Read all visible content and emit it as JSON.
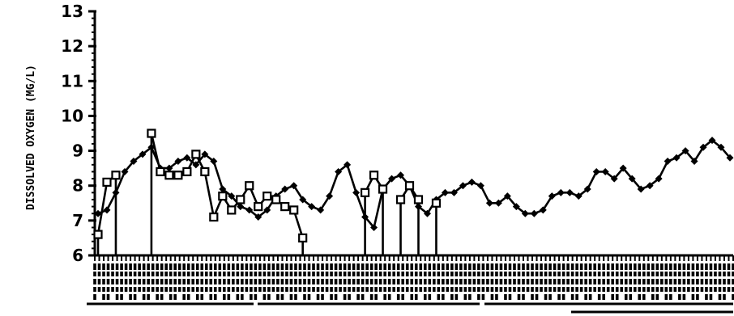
{
  "chart_data": {
    "type": "line",
    "title": "",
    "xlabel": "",
    "ylabel": "DISSOLVED OXYGEN (MG/L)",
    "ylim": [
      6,
      13
    ],
    "yticks": [
      6,
      7,
      8,
      9,
      10,
      11,
      12,
      13
    ],
    "xtick_labels_legible": false,
    "series": [
      {
        "marker": "filled-diamond",
        "values": [
          7.2,
          7.3,
          7.8,
          8.4,
          8.7,
          8.9,
          9.1,
          8.5,
          8.5,
          8.7,
          8.8,
          8.6,
          8.9,
          8.7,
          7.9,
          7.7,
          7.4,
          7.3,
          7.1,
          7.3,
          7.7,
          7.9,
          8.0,
          7.6,
          7.4,
          7.3,
          7.7,
          8.4,
          8.6,
          7.8,
          7.1,
          6.8,
          7.9,
          8.2,
          8.3,
          8.0,
          7.4,
          7.2,
          7.6,
          7.8,
          7.8,
          8.0,
          8.1,
          8.0,
          7.5,
          7.5,
          7.7,
          7.4,
          7.2,
          7.2,
          7.3,
          7.7,
          7.8,
          7.8,
          7.7,
          7.9,
          8.4,
          8.4,
          8.2,
          8.5,
          8.2,
          7.9,
          8.0,
          8.2,
          8.7,
          8.8,
          9.0,
          8.7,
          9.1,
          9.3,
          9.1,
          8.8
        ]
      },
      {
        "marker": "open-square",
        "values": [
          6.6,
          8.1,
          8.3,
          null,
          null,
          null,
          9.5,
          8.4,
          8.3,
          8.3,
          8.4,
          8.9,
          8.4,
          7.1,
          7.7,
          7.3,
          7.6,
          8.0,
          7.4,
          7.7,
          7.6,
          7.4,
          7.3,
          6.5,
          null,
          null,
          null,
          null,
          null,
          null,
          7.8,
          8.3,
          7.9,
          null,
          7.6,
          8.0,
          7.6,
          null,
          7.5,
          null,
          null
        ]
      }
    ]
  }
}
